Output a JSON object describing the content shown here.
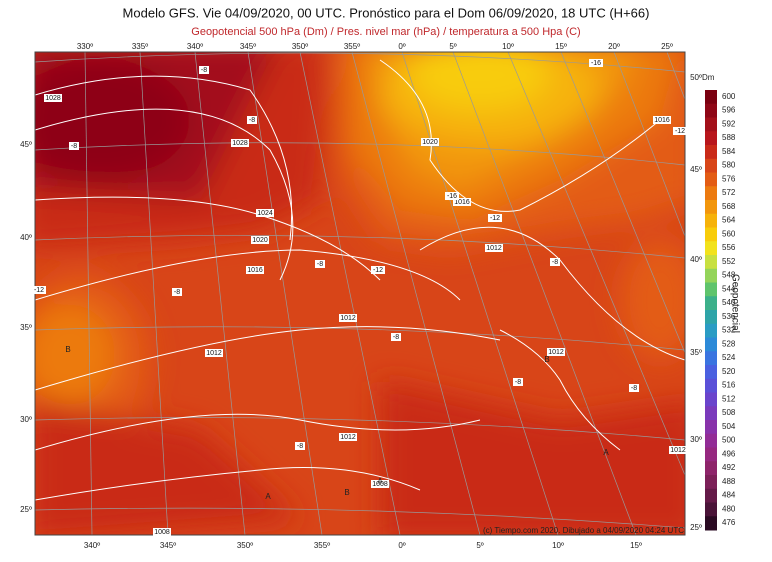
{
  "title": "Modelo GFS. Vie 04/09/2020, 00 UTC. Pronóstico para el Dom 06/09/2020, 18 UTC (H+66)",
  "subtitle": "Geopotencial 500 hPa (Dm) / Pres. nivel mar (hPa) / temperatura a 500 Hpa (C)",
  "credit": "(c) Tiempo.com 2020. Dibujado a 04/09/2020 04:24 UTC",
  "colorbar": {
    "title": "Geopotencial",
    "unit": "Dm",
    "entries": [
      {
        "label": "600",
        "color": "#7a0010"
      },
      {
        "label": "596",
        "color": "#8e0616"
      },
      {
        "label": "592",
        "color": "#a3101a"
      },
      {
        "label": "588",
        "color": "#b8161c"
      },
      {
        "label": "584",
        "color": "#c92a18"
      },
      {
        "label": "580",
        "color": "#d84518"
      },
      {
        "label": "576",
        "color": "#e35c14"
      },
      {
        "label": "572",
        "color": "#ec7a10"
      },
      {
        "label": "568",
        "color": "#f2960c"
      },
      {
        "label": "564",
        "color": "#f6b20a"
      },
      {
        "label": "560",
        "color": "#f8cc0a"
      },
      {
        "label": "556",
        "color": "#f2e21c"
      },
      {
        "label": "552",
        "color": "#c8e040"
      },
      {
        "label": "548",
        "color": "#94d45a"
      },
      {
        "label": "544",
        "color": "#5fc46c"
      },
      {
        "label": "540",
        "color": "#3cb08a"
      },
      {
        "label": "536",
        "color": "#2ea4a8"
      },
      {
        "label": "532",
        "color": "#2a9cc4"
      },
      {
        "label": "528",
        "color": "#2c8ad8"
      },
      {
        "label": "524",
        "color": "#3a74e0"
      },
      {
        "label": "520",
        "color": "#4a60e0"
      },
      {
        "label": "516",
        "color": "#5a50d8"
      },
      {
        "label": "512",
        "color": "#6a44cc"
      },
      {
        "label": "508",
        "color": "#7a3abc"
      },
      {
        "label": "504",
        "color": "#8832aa"
      },
      {
        "label": "500",
        "color": "#922c96"
      },
      {
        "label": "496",
        "color": "#962880"
      },
      {
        "label": "492",
        "color": "#8e246a"
      },
      {
        "label": "488",
        "color": "#7c2058"
      },
      {
        "label": "484",
        "color": "#641a48"
      },
      {
        "label": "480",
        "color": "#4a1438"
      },
      {
        "label": "476",
        "color": "#2a0a22"
      }
    ]
  },
  "lon_top": [
    "330º",
    "335º",
    "340º",
    "345º",
    "350º",
    "355º",
    "0º",
    "5º",
    "10º",
    "15º",
    "20º",
    "25º"
  ],
  "lon_bottom": [
    "340º",
    "345º",
    "350º",
    "355º",
    "0º",
    "5º",
    "10º",
    "15º"
  ],
  "lat_left": [
    "45º",
    "40º",
    "35º",
    "30º",
    "25º"
  ],
  "lat_right": [
    "50º",
    "45º",
    "40º",
    "35º",
    "30º",
    "25º"
  ],
  "isobars": [
    "1028",
    "1028",
    "1024",
    "1020",
    "1016",
    "1012",
    "1012",
    "1012",
    "1008",
    "1008",
    "1020",
    "1016",
    "1012",
    "1016",
    "1012",
    "1012"
  ],
  "temps": [
    "-8",
    "-8",
    "-8",
    "-8",
    "-12",
    "-8",
    "-8",
    "-8",
    "-12",
    "-16",
    "-12",
    "-16",
    "-12",
    "-8",
    "-8",
    "-8"
  ],
  "centers": [
    {
      "label": "B",
      "color": "#e05050"
    },
    {
      "label": "B",
      "color": "#e05050"
    },
    {
      "label": "B",
      "color": "#e05050"
    },
    {
      "label": "A",
      "color": "#4a5ad8"
    },
    {
      "label": "A",
      "color": "#4a5ad8"
    },
    {
      "label": "A",
      "color": "#4a5ad8"
    }
  ]
}
